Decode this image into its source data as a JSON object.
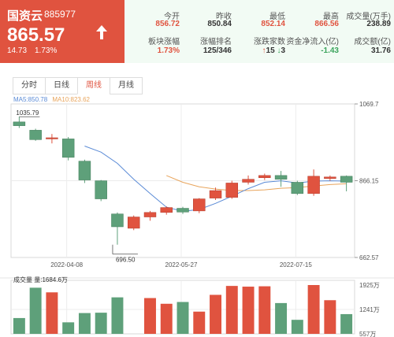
{
  "quote": {
    "name": "国资云",
    "code": "885977",
    "price": "865.57",
    "change": "14.73",
    "change_pct": "1.73%",
    "direction": "up-arrow-icon"
  },
  "stats": [
    {
      "label": "今开",
      "value": "856.72",
      "color": "up"
    },
    {
      "label": "昨收",
      "value": "850.84",
      "color": "blk"
    },
    {
      "label": "最低",
      "value": "852.14",
      "color": "up"
    },
    {
      "label": "最高",
      "value": "866.56",
      "color": "up"
    },
    {
      "label": "成交量(万手)",
      "value": "238.89",
      "color": "blk"
    },
    {
      "label": "板块涨幅",
      "value": "1.73%",
      "color": "up"
    },
    {
      "label": "涨幅排名",
      "value": "125/346",
      "color": "blk"
    },
    {
      "label": "涨跌家数",
      "value_up": "15",
      "value_down": "3",
      "color": "mixed"
    },
    {
      "label": "资金净流入(亿)",
      "value": "-1.43",
      "color": "dn"
    },
    {
      "label": "成交额(亿)",
      "value": "31.76",
      "color": "blk"
    }
  ],
  "tabs": [
    "分时",
    "日线",
    "周线",
    "月线"
  ],
  "active_tab": "周线",
  "legend": {
    "ma5": "MA5:850.78",
    "ma10": "MA10:823.62"
  },
  "volume_legend": "成交量 量:1684.6万",
  "colors": {
    "up": "#e0533f",
    "down": "#5ea07a",
    "ma5": "#5b8bd6",
    "ma10": "#e8a45b"
  },
  "chart_data": {
    "type": "candlestick",
    "price_axis": {
      "ticks": [
        "1069.7",
        "866.15",
        "662.57"
      ],
      "min": 662.57,
      "max": 1069.7
    },
    "volume_axis": {
      "ticks": [
        "1925万",
        "1241万",
        "557万"
      ],
      "min": 557,
      "max": 1925
    },
    "date_ticks": [
      "2022-04-08",
      "2022-05-27",
      "2022-07-15"
    ],
    "annotations": [
      {
        "label": "1035.79",
        "at_index": 0,
        "value": 1035.79
      },
      {
        "label": "696.50",
        "at_index": 6,
        "value": 696.5
      }
    ],
    "candles": [
      {
        "open": 1022,
        "close": 1012,
        "high": 1035.79,
        "low": 1006,
        "volume": 1000
      },
      {
        "open": 1000,
        "close": 975,
        "high": 1004,
        "low": 972,
        "volume": 1850
      },
      {
        "open": 978,
        "close": 980,
        "high": 990,
        "low": 965,
        "volume": 1720
      },
      {
        "open": 977,
        "close": 928,
        "high": 982,
        "low": 920,
        "volume": 880
      },
      {
        "open": 918,
        "close": 868,
        "high": 922,
        "low": 860,
        "volume": 1140
      },
      {
        "open": 866,
        "close": 818,
        "high": 868,
        "low": 812,
        "volume": 1150
      },
      {
        "open": 778,
        "close": 744,
        "high": 782,
        "low": 696.5,
        "volume": 1580
      },
      {
        "open": 740,
        "close": 770,
        "high": 774,
        "low": 735,
        "volume": 557
      },
      {
        "open": 770,
        "close": 782,
        "high": 786,
        "low": 760,
        "volume": 1560
      },
      {
        "open": 782,
        "close": 795,
        "high": 798,
        "low": 776,
        "volume": 1400
      },
      {
        "open": 793,
        "close": 783,
        "high": 797,
        "low": 778,
        "volume": 1450
      },
      {
        "open": 786,
        "close": 818,
        "high": 820,
        "low": 780,
        "volume": 1180
      },
      {
        "open": 820,
        "close": 840,
        "high": 848,
        "low": 815,
        "volume": 1650
      },
      {
        "open": 822,
        "close": 860,
        "high": 866,
        "low": 818,
        "volume": 1900
      },
      {
        "open": 862,
        "close": 870,
        "high": 880,
        "low": 856,
        "volume": 1880
      },
      {
        "open": 874,
        "close": 880,
        "high": 885,
        "low": 868,
        "volume": 1890
      },
      {
        "open": 880,
        "close": 870,
        "high": 892,
        "low": 850,
        "volume": 1420
      },
      {
        "open": 862,
        "close": 832,
        "high": 866,
        "low": 828,
        "volume": 950
      },
      {
        "open": 832,
        "close": 878,
        "high": 896,
        "low": 826,
        "volume": 1925
      },
      {
        "open": 872,
        "close": 876,
        "high": 880,
        "low": 866,
        "volume": 1500
      },
      {
        "open": 878,
        "close": 862,
        "high": 880,
        "low": 838,
        "volume": 1110
      }
    ],
    "ma5": [
      null,
      null,
      null,
      null,
      958,
      942,
      912,
      870,
      832,
      796,
      785,
      790,
      806,
      825,
      845,
      862,
      866,
      860,
      865,
      866,
      865
    ],
    "ma10": [
      null,
      null,
      null,
      null,
      null,
      null,
      null,
      null,
      null,
      880,
      862,
      850,
      844,
      840,
      840,
      842,
      846,
      848,
      852,
      856,
      858
    ]
  }
}
